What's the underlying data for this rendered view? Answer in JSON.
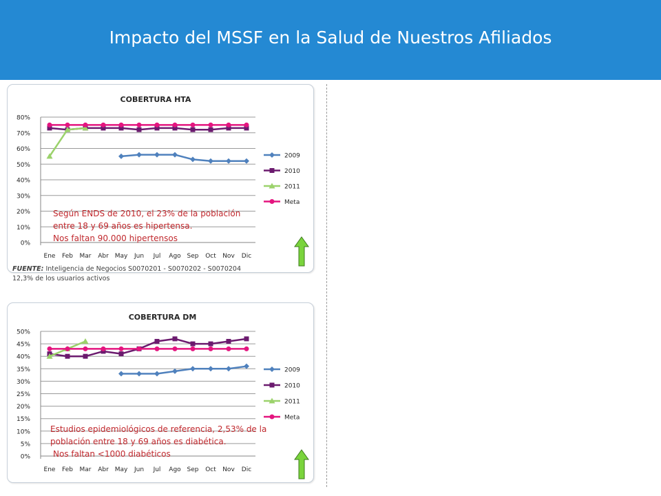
{
  "page": {
    "title": "Impacto del MSSF en la Salud de Nuestros Afiliados",
    "source_label": "FUENTE:",
    "source_text": "Inteligencia de Negocios S0070201 - S0070202 - S0070204",
    "source_note": "12,3% de los usuarios activos",
    "colors": {
      "header": "#2489d3",
      "arrow_fill": "#7ad43c",
      "note_text": "#c0282d"
    }
  },
  "chart_data": [
    {
      "type": "line",
      "title": "COBERTURA HTA",
      "categories": [
        "Ene",
        "Feb",
        "Mar",
        "Abr",
        "May",
        "Jun",
        "Jul",
        "Ago",
        "Sep",
        "Oct",
        "Nov",
        "Dic"
      ],
      "ylim": [
        0,
        80
      ],
      "yticks": [
        "0%",
        "10%",
        "20%",
        "30%",
        "40%",
        "50%",
        "60%",
        "70%",
        "80%"
      ],
      "grid": true,
      "legend": "right",
      "series": [
        {
          "name": "2009",
          "color": "#4f81bd",
          "marker": "diamond",
          "values": [
            null,
            null,
            null,
            null,
            55,
            56,
            56,
            56,
            53,
            52,
            52,
            52
          ]
        },
        {
          "name": "2010",
          "color": "#6b1a6e",
          "marker": "square",
          "values": [
            73,
            72,
            73,
            73,
            73,
            72,
            73,
            73,
            72,
            72,
            73,
            73
          ]
        },
        {
          "name": "2011",
          "color": "#9bd26b",
          "marker": "triangle",
          "values": [
            55,
            72,
            73,
            null,
            null,
            null,
            null,
            null,
            null,
            null,
            null,
            null
          ]
        },
        {
          "name": "Meta",
          "color": "#e4157f",
          "marker": "circle",
          "values": [
            75,
            75,
            75,
            75,
            75,
            75,
            75,
            75,
            75,
            75,
            75,
            75
          ]
        }
      ],
      "annotation": [
        "Según ENDS de 2010, el 23% de la población",
        "entre 18 y 69 años es hipertensa.",
        "Nos faltan 90.000 hipertensos"
      ]
    },
    {
      "type": "line",
      "title": "COBERTURA DM",
      "categories": [
        "Ene",
        "Feb",
        "Mar",
        "Abr",
        "May",
        "Jun",
        "Jul",
        "Ago",
        "Sep",
        "Oct",
        "Nov",
        "Dic"
      ],
      "ylim": [
        0,
        50
      ],
      "yticks": [
        "0%",
        "5%",
        "10%",
        "15%",
        "20%",
        "25%",
        "30%",
        "35%",
        "40%",
        "45%",
        "50%"
      ],
      "grid": true,
      "legend": "right",
      "series": [
        {
          "name": "2009",
          "color": "#4f81bd",
          "marker": "diamond",
          "values": [
            null,
            null,
            null,
            null,
            33,
            33,
            33,
            34,
            35,
            35,
            35,
            36
          ]
        },
        {
          "name": "2010",
          "color": "#6b1a6e",
          "marker": "square",
          "values": [
            41,
            40,
            40,
            42,
            41,
            43,
            46,
            47,
            45,
            45,
            46,
            47
          ]
        },
        {
          "name": "2011",
          "color": "#9bd26b",
          "marker": "triangle",
          "values": [
            40,
            43,
            46,
            null,
            null,
            null,
            null,
            null,
            null,
            null,
            null,
            null
          ]
        },
        {
          "name": "Meta",
          "color": "#e4157f",
          "marker": "circle",
          "values": [
            43,
            43,
            43,
            43,
            43,
            43,
            43,
            43,
            43,
            43,
            43,
            43
          ]
        }
      ],
      "annotation": [
        "Estudios epidemiológicos de referencia, 2,53% de la",
        "población entre 18 y 69 años es diabética.",
        "Nos faltan <1000 diabéticos"
      ]
    }
  ]
}
